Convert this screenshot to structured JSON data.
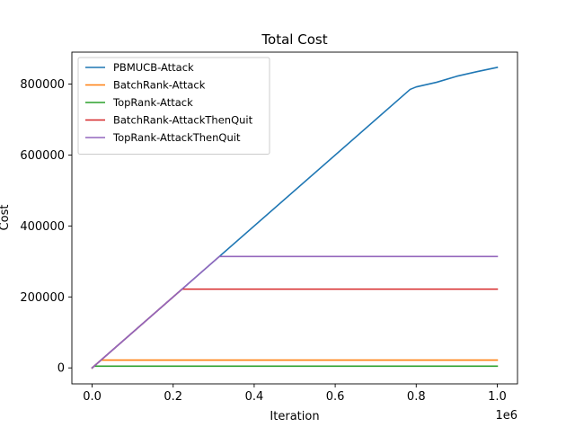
{
  "chart_data": {
    "type": "line",
    "title": "Total Cost",
    "xlabel": "Iteration",
    "ylabel": "Cost",
    "x_offset_text": "1e6",
    "xlim": [
      -0.05,
      1.05
    ],
    "ylim": [
      -45000,
      890000
    ],
    "x_ticks": [
      0.0,
      0.2,
      0.4,
      0.6,
      0.8,
      1.0
    ],
    "x_tick_labels": [
      "0.0",
      "0.2",
      "0.4",
      "0.6",
      "0.8",
      "1.0"
    ],
    "y_ticks": [
      0,
      200000,
      400000,
      600000,
      800000
    ],
    "y_tick_labels": [
      "0",
      "200000",
      "400000",
      "600000",
      "800000"
    ],
    "grid": false,
    "legend_position": "top-left",
    "series": [
      {
        "name": "PBMUCB-Attack",
        "color": "#1f77b4",
        "x": [
          0.0,
          0.785,
          0.8,
          0.85,
          0.9,
          0.95,
          1.0
        ],
        "y": [
          0,
          785000,
          792000,
          805000,
          822000,
          835000,
          847000
        ]
      },
      {
        "name": "BatchRank-Attack",
        "color": "#ff7f0e",
        "x": [
          0.0,
          0.022,
          1.0
        ],
        "y": [
          0,
          22000,
          22000
        ]
      },
      {
        "name": "TopRank-Attack",
        "color": "#2ca02c",
        "x": [
          0.0,
          0.005,
          1.0
        ],
        "y": [
          0,
          5000,
          5000
        ]
      },
      {
        "name": "BatchRank-AttackThenQuit",
        "color": "#d62728",
        "x": [
          0.0,
          0.222,
          1.0
        ],
        "y": [
          0,
          222000,
          222000
        ]
      },
      {
        "name": "TopRank-AttackThenQuit",
        "color": "#9467bd",
        "x": [
          0.0,
          0.314,
          1.0
        ],
        "y": [
          0,
          314000,
          314000
        ]
      }
    ]
  }
}
